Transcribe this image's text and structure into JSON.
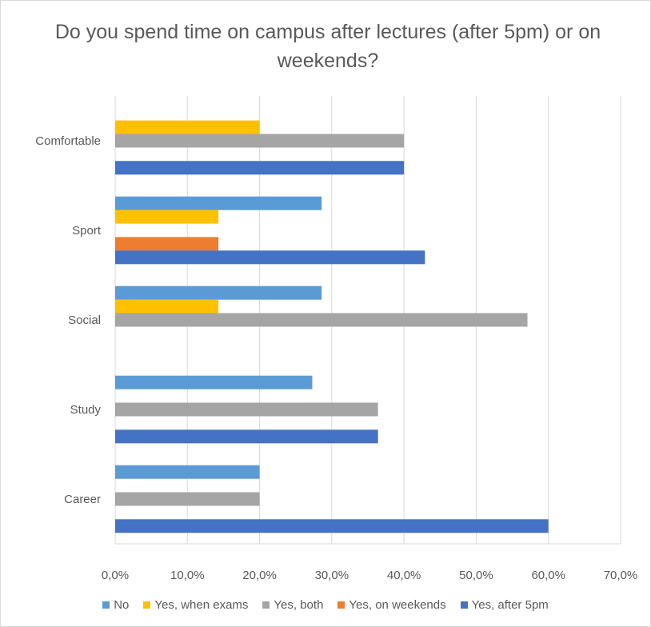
{
  "chart_data": {
    "type": "bar",
    "orientation": "horizontal",
    "title": "Do you spend time on campus after lectures (after 5pm) or on weekends?",
    "categories": [
      "Comfortable",
      "Sport",
      "Social",
      "Study",
      "Career"
    ],
    "xlim": [
      0,
      70
    ],
    "x_ticks": [
      "0,0%",
      "10,0%",
      "20,0%",
      "30,0%",
      "40,0%",
      "50,0%",
      "60,0%",
      "70,0%"
    ],
    "grid": true,
    "legend_position": "bottom",
    "series": [
      {
        "name": "No",
        "color": "#5b9bd5",
        "values": [
          0,
          28.6,
          28.6,
          27.3,
          20
        ]
      },
      {
        "name": "Yes, when exams",
        "color": "#ffc000",
        "values": [
          20,
          14.3,
          14.3,
          0,
          0
        ]
      },
      {
        "name": "Yes, both",
        "color": "#a5a5a5",
        "values": [
          40,
          0,
          57.1,
          36.4,
          20
        ]
      },
      {
        "name": "Yes, on weekends",
        "color": "#ed7d31",
        "values": [
          0,
          14.3,
          0,
          0,
          0
        ]
      },
      {
        "name": "Yes, after 5pm",
        "color": "#4472c4",
        "values": [
          40,
          42.9,
          0,
          36.4,
          60
        ]
      }
    ]
  }
}
